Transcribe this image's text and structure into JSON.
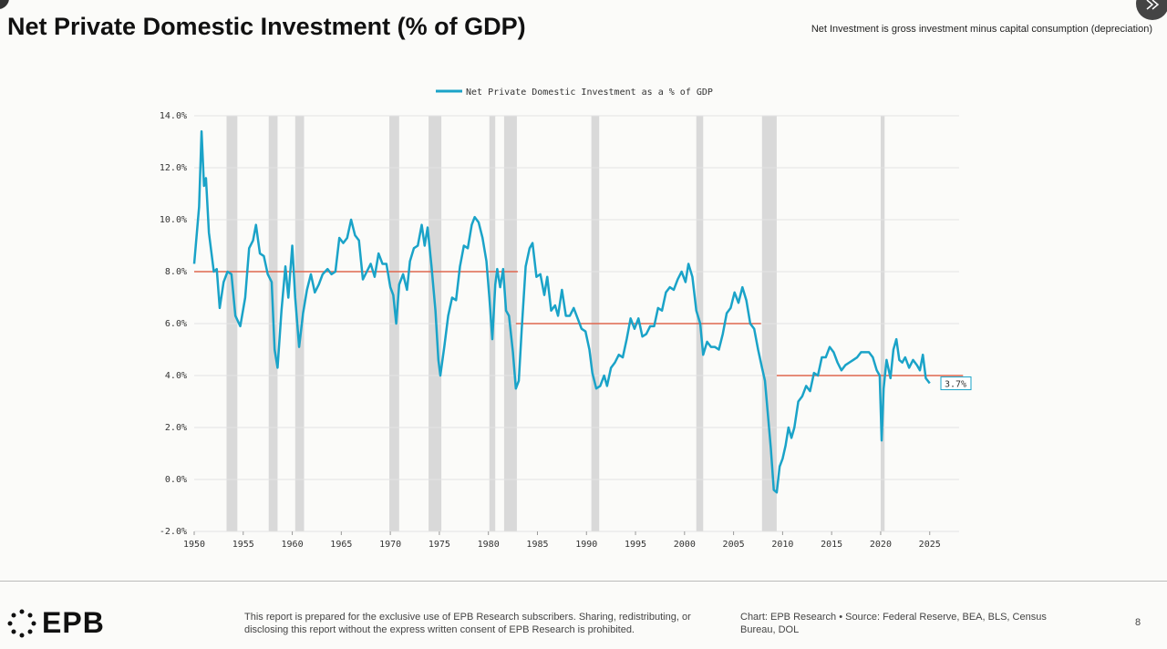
{
  "header": {
    "title": "Net Private Domestic Investment (% of GDP)",
    "note": "Net Investment is gross investment minus capital consumption (depreciation)"
  },
  "chart_data": {
    "type": "line",
    "series": [
      {
        "name": "Net Private Domestic Investment as a % of GDP",
        "color": "#1aa3c8"
      }
    ],
    "x": [
      1950.0,
      1950.5,
      1950.75,
      1951.0,
      1951.2,
      1951.5,
      1952.0,
      1952.3,
      1952.6,
      1953.0,
      1953.4,
      1953.8,
      1954.2,
      1954.7,
      1955.2,
      1955.6,
      1956.0,
      1956.3,
      1956.7,
      1957.1,
      1957.5,
      1957.9,
      1958.2,
      1958.5,
      1958.9,
      1959.3,
      1959.6,
      1960.0,
      1960.3,
      1960.7,
      1961.1,
      1961.5,
      1961.9,
      1962.3,
      1962.7,
      1963.1,
      1963.6,
      1964.0,
      1964.4,
      1964.8,
      1965.2,
      1965.6,
      1966.0,
      1966.4,
      1966.8,
      1967.2,
      1967.6,
      1968.0,
      1968.4,
      1968.8,
      1969.2,
      1969.6,
      1970.0,
      1970.3,
      1970.6,
      1970.9,
      1971.3,
      1971.7,
      1972.0,
      1972.4,
      1972.8,
      1973.2,
      1973.5,
      1973.8,
      1974.2,
      1974.6,
      1974.9,
      1975.1,
      1975.5,
      1975.9,
      1976.3,
      1976.7,
      1977.1,
      1977.5,
      1977.9,
      1978.3,
      1978.6,
      1979.0,
      1979.4,
      1979.8,
      1980.1,
      1980.4,
      1980.7,
      1980.9,
      1981.2,
      1981.5,
      1981.8,
      1982.1,
      1982.5,
      1982.8,
      1983.1,
      1983.4,
      1983.8,
      1984.2,
      1984.5,
      1984.9,
      1985.3,
      1985.7,
      1986.0,
      1986.4,
      1986.8,
      1987.1,
      1987.5,
      1987.9,
      1988.3,
      1988.7,
      1989.1,
      1989.5,
      1989.9,
      1990.3,
      1990.6,
      1991.0,
      1991.4,
      1991.8,
      1992.1,
      1992.5,
      1992.9,
      1993.3,
      1993.7,
      1994.1,
      1994.5,
      1994.9,
      1995.3,
      1995.7,
      1996.1,
      1996.5,
      1996.9,
      1997.3,
      1997.7,
      1998.1,
      1998.5,
      1998.9,
      1999.3,
      1999.7,
      2000.1,
      2000.4,
      2000.8,
      2001.2,
      2001.6,
      2001.9,
      2002.3,
      2002.7,
      2003.1,
      2003.5,
      2003.9,
      2004.3,
      2004.7,
      2005.1,
      2005.5,
      2005.9,
      2006.3,
      2006.7,
      2007.1,
      2007.5,
      2007.9,
      2008.2,
      2008.5,
      2008.8,
      2009.1,
      2009.4,
      2009.7,
      2010.0,
      2010.3,
      2010.6,
      2010.9,
      2011.2,
      2011.6,
      2012.0,
      2012.4,
      2012.8,
      2013.2,
      2013.6,
      2014.0,
      2014.4,
      2014.8,
      2015.2,
      2015.6,
      2016.0,
      2016.4,
      2016.8,
      2017.2,
      2017.6,
      2018.0,
      2018.4,
      2018.8,
      2019.2,
      2019.6,
      2019.9,
      2020.1,
      2020.3,
      2020.6,
      2021.0,
      2021.3,
      2021.6,
      2021.9,
      2022.2,
      2022.5,
      2022.9,
      2023.3,
      2023.7,
      2024.0,
      2024.3,
      2024.6,
      2025.0
    ],
    "values": [
      8.3,
      10.5,
      13.4,
      11.3,
      11.6,
      9.5,
      8.0,
      8.1,
      6.6,
      7.6,
      8.0,
      7.9,
      6.3,
      5.9,
      7.0,
      8.9,
      9.2,
      9.8,
      8.7,
      8.6,
      7.9,
      7.6,
      5.0,
      4.3,
      6.5,
      8.2,
      7.0,
      9.0,
      7.0,
      5.1,
      6.4,
      7.3,
      7.9,
      7.2,
      7.5,
      7.9,
      8.1,
      7.9,
      8.0,
      9.3,
      9.1,
      9.3,
      10.0,
      9.4,
      9.2,
      7.7,
      8.0,
      8.3,
      7.8,
      8.7,
      8.3,
      8.3,
      7.4,
      7.1,
      6.0,
      7.5,
      7.9,
      7.3,
      8.4,
      8.9,
      9.0,
      9.8,
      9.0,
      9.7,
      8.2,
      6.5,
      4.6,
      4.0,
      5.1,
      6.3,
      7.0,
      6.9,
      8.2,
      9.0,
      8.9,
      9.8,
      10.1,
      9.9,
      9.3,
      8.4,
      7.0,
      5.4,
      7.5,
      8.1,
      7.4,
      8.1,
      6.5,
      6.3,
      4.9,
      3.5,
      3.8,
      5.8,
      8.2,
      8.9,
      9.1,
      7.8,
      7.9,
      7.1,
      7.8,
      6.5,
      6.7,
      6.3,
      7.3,
      6.3,
      6.3,
      6.6,
      6.2,
      5.8,
      5.7,
      5.0,
      4.1,
      3.5,
      3.6,
      4.0,
      3.6,
      4.3,
      4.5,
      4.8,
      4.7,
      5.4,
      6.2,
      5.8,
      6.2,
      5.5,
      5.6,
      5.9,
      5.9,
      6.6,
      6.5,
      7.2,
      7.4,
      7.3,
      7.7,
      8.0,
      7.6,
      8.3,
      7.8,
      6.5,
      6.0,
      4.8,
      5.3,
      5.1,
      5.1,
      5.0,
      5.6,
      6.4,
      6.6,
      7.2,
      6.8,
      7.4,
      6.9,
      6.0,
      5.8,
      5.0,
      4.3,
      3.8,
      2.5,
      1.2,
      -0.4,
      -0.5,
      0.5,
      0.8,
      1.3,
      2.0,
      1.6,
      2.0,
      3.0,
      3.2,
      3.6,
      3.4,
      4.1,
      4.0,
      4.7,
      4.7,
      5.1,
      4.9,
      4.5,
      4.2,
      4.4,
      4.5,
      4.6,
      4.7,
      4.9,
      4.9,
      4.9,
      4.7,
      4.2,
      4.0,
      1.5,
      3.5,
      4.6,
      3.9,
      5.0,
      5.4,
      4.6,
      4.5,
      4.7,
      4.3,
      4.6,
      4.4,
      4.2,
      4.8,
      3.9,
      3.7
    ],
    "end_label": {
      "value": 3.7,
      "label": "3.7%"
    },
    "recessions": [
      [
        1953.3,
        1954.4
      ],
      [
        1957.6,
        1958.5
      ],
      [
        1960.3,
        1961.2
      ],
      [
        1969.9,
        1970.9
      ],
      [
        1973.9,
        1975.2
      ],
      [
        1980.1,
        1980.7
      ],
      [
        1981.6,
        1982.9
      ],
      [
        1990.5,
        1991.3
      ],
      [
        2001.2,
        2001.9
      ],
      [
        2007.9,
        2009.4
      ],
      [
        2020.0,
        2020.4
      ]
    ],
    "recession_color": "#d9d9d9",
    "averages": [
      {
        "start": 1950.0,
        "end": 1983.0,
        "value": 8.0
      },
      {
        "start": 1982.8,
        "end": 2007.8,
        "value": 6.0
      },
      {
        "start": 2009.4,
        "end": 2028.4,
        "value": 4.0
      }
    ],
    "average_color": "#e0674f",
    "xlim": [
      1950,
      2028
    ],
    "ylim": [
      -2,
      14
    ],
    "xticks": [
      1950,
      1955,
      1960,
      1965,
      1970,
      1975,
      1980,
      1985,
      1990,
      1995,
      2000,
      2005,
      2010,
      2015,
      2020,
      2025
    ],
    "yticks": [
      {
        "value": -2,
        "label": "-2.0%"
      },
      {
        "value": 0,
        "label": "0.0%"
      },
      {
        "value": 2,
        "label": "2.0%"
      },
      {
        "value": 4,
        "label": "4.0%"
      },
      {
        "value": 6,
        "label": "6.0%"
      },
      {
        "value": 8,
        "label": "8.0%"
      },
      {
        "value": 10,
        "label": "10.0%"
      },
      {
        "value": 12,
        "label": "12.0%"
      },
      {
        "value": 14,
        "label": "14.0%"
      }
    ],
    "grid": true
  },
  "footer": {
    "logo": "EPB",
    "disclaimer": "This report is prepared for the exclusive use of EPB Research subscribers. Sharing, redistributing, or disclosing this report without the express written consent of EPB Research is prohibited.",
    "source": "Chart: EPB Research • Source: Federal Reserve, BEA, BLS, Census Bureau, DOL",
    "page": "8"
  }
}
